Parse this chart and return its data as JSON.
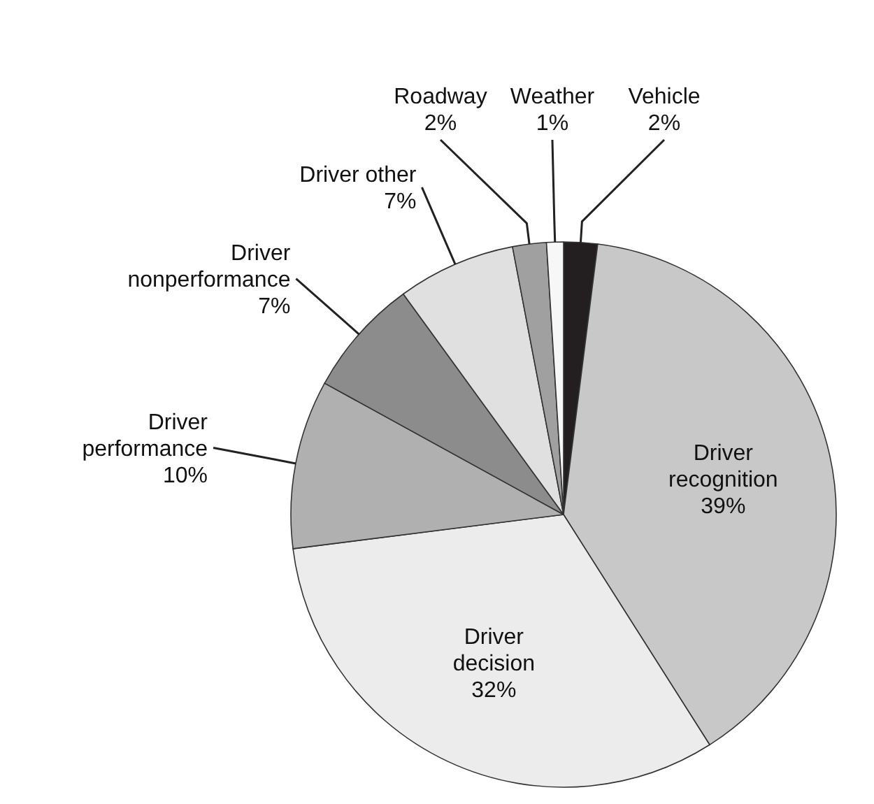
{
  "chart_data": {
    "type": "pie",
    "categories": [
      "Vehicle",
      "Driver recognition",
      "Driver decision",
      "Driver performance",
      "Driver nonperformance",
      "Driver other",
      "Roadway",
      "Weather"
    ],
    "values": [
      2,
      39,
      32,
      10,
      7,
      7,
      2,
      1
    ],
    "colors": [
      "#231f20",
      "#c8c8c8",
      "#ececec",
      "#b0b0b0",
      "#8c8c8c",
      "#e0e0e0",
      "#a0a0a0",
      "#f7f7f7"
    ],
    "value_labels": [
      "2%",
      "39%",
      "32%",
      "10%",
      "7%",
      "7%",
      "2%",
      "1%"
    ],
    "legend": false
  }
}
